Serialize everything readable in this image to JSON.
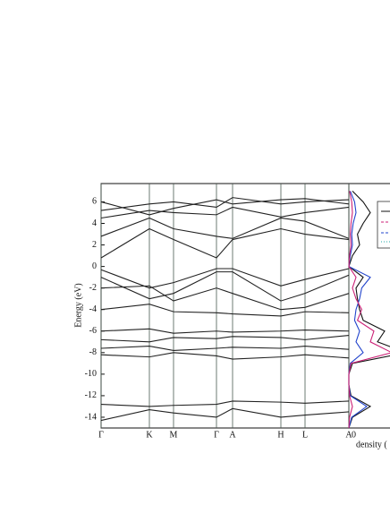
{
  "chart_data": [
    {
      "type": "line",
      "ylabel": "Energy (eV)",
      "x": [
        0,
        54,
        81,
        129,
        147,
        201,
        228,
        277
      ],
      "xlim": [
        0,
        277
      ],
      "xticks": [
        {
          "value": 0,
          "label": "Γ"
        },
        {
          "value": 54,
          "label": "K"
        },
        {
          "value": 81,
          "label": "M"
        },
        {
          "value": 129,
          "label": "Γ"
        },
        {
          "value": 147,
          "label": "A"
        },
        {
          "value": 201,
          "label": "H"
        },
        {
          "value": 228,
          "label": "L"
        },
        {
          "value": 277,
          "label": "A"
        }
      ],
      "ylim": [
        -15,
        7.7
      ],
      "yticks": [
        -14,
        -12,
        -10,
        -8,
        -6,
        -4,
        -2,
        0,
        2,
        4,
        6
      ],
      "grid": true,
      "series": [
        {
          "color": "#222222",
          "values": [
            0.8,
            3.5,
            2.5,
            0.8,
            2.5,
            3.5,
            3.0,
            2.5
          ]
        },
        {
          "color": "#222222",
          "values": [
            2.8,
            4.5,
            3.5,
            2.8,
            2.6,
            4.5,
            4.2,
            2.6
          ]
        },
        {
          "color": "#222222",
          "values": [
            4.5,
            5.2,
            5.0,
            4.8,
            5.5,
            4.6,
            5.0,
            5.5
          ]
        },
        {
          "color": "#222222",
          "values": [
            5.2,
            5.8,
            6.0,
            5.5,
            6.4,
            5.8,
            6.0,
            6.2
          ]
        },
        {
          "color": "#222222",
          "values": [
            6.0,
            4.8,
            5.4,
            6.2,
            5.8,
            6.2,
            6.3,
            5.8
          ]
        },
        {
          "color": "#222222",
          "values": [
            -0.3,
            -2.0,
            -1.5,
            -0.2,
            -0.2,
            -1.8,
            -1.2,
            -0.2
          ]
        },
        {
          "color": "#222222",
          "values": [
            -1.0,
            -3.0,
            -2.5,
            -0.5,
            -0.5,
            -3.2,
            -2.5,
            -0.8
          ]
        },
        {
          "color": "#222222",
          "values": [
            -2.0,
            -1.8,
            -3.2,
            -2.0,
            -2.5,
            -4.0,
            -3.8,
            -2.5
          ]
        },
        {
          "color": "#222222",
          "values": [
            -4.0,
            -3.5,
            -4.2,
            -4.3,
            -4.4,
            -4.6,
            -4.2,
            -4.3
          ]
        },
        {
          "color": "#222222",
          "values": [
            -6.0,
            -5.8,
            -6.2,
            -6.0,
            -6.1,
            -6.0,
            -5.9,
            -6.0
          ]
        },
        {
          "color": "#222222",
          "values": [
            -6.8,
            -7.0,
            -6.6,
            -6.7,
            -6.5,
            -6.6,
            -6.8,
            -6.4
          ]
        },
        {
          "color": "#222222",
          "values": [
            -7.6,
            -7.4,
            -7.8,
            -7.6,
            -7.5,
            -7.6,
            -7.4,
            -7.7
          ]
        },
        {
          "color": "#222222",
          "values": [
            -8.2,
            -8.4,
            -8.0,
            -8.3,
            -8.6,
            -8.4,
            -8.2,
            -8.5
          ]
        },
        {
          "color": "#222222",
          "values": [
            -12.8,
            -13.0,
            -12.9,
            -12.8,
            -12.5,
            -12.6,
            -12.7,
            -12.5
          ]
        },
        {
          "color": "#222222",
          "values": [
            -14.3,
            -13.3,
            -13.6,
            -14.0,
            -13.2,
            -14.0,
            -13.8,
            -13.5
          ]
        }
      ]
    },
    {
      "type": "line",
      "orientation": "vertical",
      "xlabel": "density (",
      "x": [
        -15,
        -14,
        -13,
        -12,
        -11,
        -10,
        -9,
        -8,
        -7,
        -6,
        -5,
        -4,
        -3,
        -2,
        -1,
        0,
        1,
        2,
        3,
        4,
        5,
        6,
        7
      ],
      "xlim": [
        -15,
        7.7
      ],
      "ylim": [
        0,
        10
      ],
      "yticks": [
        0
      ],
      "series": [
        {
          "color": "#111111",
          "values": [
            0,
            0.5,
            3,
            0.3,
            0,
            0,
            0.5,
            8,
            4,
            5,
            2,
            1.5,
            1.2,
            1,
            2,
            0,
            0.5,
            1.5,
            1.2,
            2,
            3,
            2,
            0.5
          ]
        },
        {
          "color": "#2244cc",
          "values": [
            0,
            0.4,
            2.5,
            0.2,
            0,
            0,
            0.2,
            2,
            1,
            1.5,
            0.8,
            1,
            1.5,
            1.8,
            3,
            0,
            0.2,
            0.5,
            0.4,
            0.6,
            1,
            0.8,
            0.2
          ]
        },
        {
          "color": "#cc2277",
          "values": [
            0,
            0.1,
            0.5,
            0.1,
            0,
            0,
            0.3,
            6,
            3,
            3.5,
            1.2,
            1.8,
            1,
            0.5,
            1,
            0,
            0.1,
            0.3,
            0.2,
            0.3,
            0.5,
            0.4,
            0.1
          ]
        }
      ]
    }
  ]
}
